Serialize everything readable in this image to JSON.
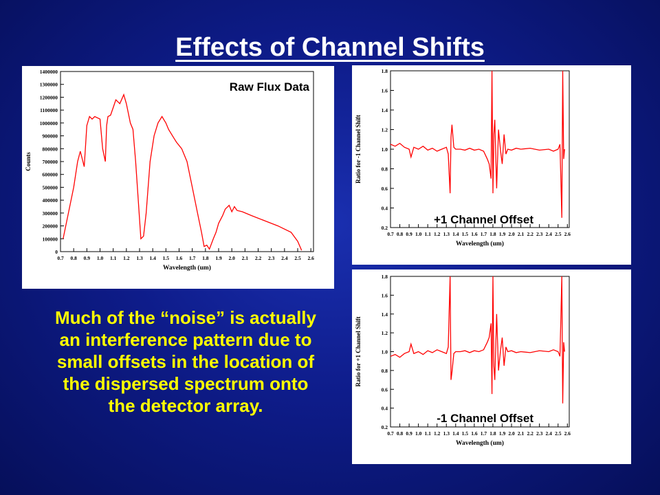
{
  "slide": {
    "title": "Effects of Channel Shifts",
    "note_lines": [
      "Much of the “noise” is actually",
      "an interference pattern due to",
      "small offsets in the location of",
      "the dispersed spectrum onto",
      "the detector array."
    ]
  },
  "colors": {
    "background": "#0e1c8a",
    "title": "#ffffff",
    "note": "#ffff00",
    "trace": "#ff0000"
  },
  "chart_data": [
    {
      "type": "line",
      "annotation": "Raw Flux Data",
      "xlabel": "Wavelength (um)",
      "ylabel": "Counts",
      "xlim": [
        0.7,
        2.62
      ],
      "ylim": [
        0,
        1400000
      ],
      "xticks": [
        "0.7",
        "0.8",
        "0.9",
        "1.0",
        "1.1",
        "1.2",
        "1.3",
        "1.4",
        "1.5",
        "1.6",
        "1.7",
        "1.8",
        "1.9",
        "2.0",
        "2.1",
        "2.2",
        "2.3",
        "2.4",
        "2.5",
        "2.6"
      ],
      "yticks": [
        "0",
        "100000",
        "200000",
        "300000",
        "400000",
        "500000",
        "600000",
        "700000",
        "800000",
        "900000",
        "1000000",
        "1100000",
        "1200000",
        "1300000",
        "1400000"
      ],
      "x": [
        0.72,
        0.76,
        0.8,
        0.83,
        0.85,
        0.87,
        0.88,
        0.9,
        0.92,
        0.94,
        0.96,
        1.0,
        1.02,
        1.04,
        1.05,
        1.06,
        1.08,
        1.1,
        1.12,
        1.15,
        1.18,
        1.2,
        1.23,
        1.25,
        1.27,
        1.29,
        1.31,
        1.33,
        1.35,
        1.38,
        1.41,
        1.44,
        1.47,
        1.5,
        1.52,
        1.55,
        1.58,
        1.62,
        1.66,
        1.7,
        1.74,
        1.77,
        1.79,
        1.81,
        1.83,
        1.86,
        1.88,
        1.9,
        1.93,
        1.95,
        1.98,
        2.0,
        2.02,
        2.04,
        2.08,
        2.15,
        2.25,
        2.35,
        2.45,
        2.5,
        2.53
      ],
      "y": [
        100000,
        300000,
        500000,
        700000,
        780000,
        700000,
        660000,
        980000,
        1050000,
        1030000,
        1050000,
        1030000,
        800000,
        700000,
        980000,
        1050000,
        1060000,
        1120000,
        1180000,
        1150000,
        1220000,
        1150000,
        1000000,
        950000,
        700000,
        400000,
        100000,
        120000,
        300000,
        700000,
        900000,
        1000000,
        1050000,
        1000000,
        950000,
        900000,
        850000,
        800000,
        700000,
        500000,
        300000,
        150000,
        40000,
        50000,
        20000,
        100000,
        150000,
        220000,
        280000,
        330000,
        360000,
        310000,
        350000,
        320000,
        310000,
        280000,
        240000,
        200000,
        150000,
        80000,
        10000
      ]
    },
    {
      "type": "line",
      "annotation": "+1 Channel Offset",
      "xlabel": "Wavelength (um)",
      "ylabel": "Ratio for -1 Channel Shift",
      "xlim": [
        0.7,
        2.62
      ],
      "ylim": [
        0.2,
        1.8
      ],
      "xticks": [
        "0.7",
        "0.8",
        "0.9",
        "1.0",
        "1.1",
        "1.2",
        "1.3",
        "1.4",
        "1.5",
        "1.6",
        "1.7",
        "1.8",
        "1.9",
        "2.0",
        "2.1",
        "2.2",
        "2.3",
        "2.4",
        "2.5",
        "2.6"
      ],
      "yticks": [
        "0.2",
        "0.4",
        "0.6",
        "0.8",
        "1.0",
        "1.2",
        "1.4",
        "1.6",
        "1.8"
      ],
      "x": [
        0.7,
        0.75,
        0.8,
        0.85,
        0.9,
        0.92,
        0.95,
        1.0,
        1.05,
        1.1,
        1.15,
        1.2,
        1.25,
        1.3,
        1.32,
        1.34,
        1.35,
        1.36,
        1.38,
        1.4,
        1.45,
        1.5,
        1.55,
        1.6,
        1.65,
        1.7,
        1.74,
        1.76,
        1.78,
        1.79,
        1.8,
        1.81,
        1.82,
        1.84,
        1.86,
        1.88,
        1.9,
        1.92,
        1.94,
        1.96,
        2.0,
        2.05,
        2.1,
        2.2,
        2.3,
        2.4,
        2.45,
        2.5,
        2.52,
        2.54,
        2.55,
        2.56,
        2.57
      ],
      "y": [
        1.05,
        1.03,
        1.06,
        1.02,
        1.0,
        0.92,
        1.02,
        1.0,
        1.03,
        0.99,
        1.01,
        0.98,
        1.0,
        1.02,
        0.95,
        0.55,
        1.12,
        1.25,
        1.02,
        1.0,
        1.0,
        0.99,
        1.01,
        0.99,
        1.0,
        0.98,
        0.9,
        0.85,
        0.7,
        1.8,
        0.55,
        1.15,
        1.3,
        0.6,
        1.2,
        1.0,
        0.85,
        1.15,
        0.95,
        1.0,
        0.99,
        1.01,
        1.0,
        1.01,
        0.99,
        1.0,
        0.98,
        1.0,
        1.05,
        0.3,
        1.8,
        0.9,
        1.0
      ]
    },
    {
      "type": "line",
      "annotation": "-1 Channel Offset",
      "xlabel": "Wavelength (um)",
      "ylabel": "Ratio for +1 Channel Shift",
      "xlim": [
        0.7,
        2.62
      ],
      "ylim": [
        0.2,
        1.8
      ],
      "xticks": [
        "0.7",
        "0.8",
        "0.9",
        "1.0",
        "1.1",
        "1.2",
        "1.3",
        "1.4",
        "1.5",
        "1.6",
        "1.7",
        "1.8",
        "1.9",
        "2.0",
        "2.1",
        "2.2",
        "2.3",
        "2.4",
        "2.5",
        "2.6"
      ],
      "yticks": [
        "0.2",
        "0.4",
        "0.6",
        "0.8",
        "1.0",
        "1.2",
        "1.4",
        "1.6",
        "1.8"
      ],
      "x": [
        0.7,
        0.75,
        0.8,
        0.85,
        0.9,
        0.92,
        0.95,
        1.0,
        1.05,
        1.1,
        1.15,
        1.2,
        1.25,
        1.3,
        1.32,
        1.34,
        1.35,
        1.36,
        1.38,
        1.4,
        1.45,
        1.5,
        1.55,
        1.6,
        1.65,
        1.7,
        1.74,
        1.76,
        1.78,
        1.79,
        1.8,
        1.81,
        1.82,
        1.84,
        1.86,
        1.88,
        1.9,
        1.92,
        1.94,
        1.96,
        2.0,
        2.05,
        2.1,
        2.2,
        2.3,
        2.4,
        2.45,
        2.5,
        2.52,
        2.54,
        2.55,
        2.56,
        2.57
      ],
      "y": [
        0.95,
        0.97,
        0.94,
        0.98,
        1.0,
        1.08,
        0.98,
        1.0,
        0.97,
        1.01,
        0.99,
        1.02,
        1.0,
        0.98,
        1.05,
        1.8,
        0.7,
        0.78,
        0.98,
        1.0,
        1.0,
        1.01,
        0.99,
        1.01,
        1.0,
        1.02,
        1.1,
        1.15,
        1.3,
        0.55,
        1.8,
        0.85,
        0.7,
        1.4,
        0.8,
        1.0,
        1.15,
        0.85,
        1.05,
        1.0,
        1.01,
        0.99,
        1.0,
        0.99,
        1.01,
        1.0,
        1.02,
        1.0,
        0.95,
        1.8,
        0.45,
        1.1,
        1.0
      ]
    }
  ]
}
